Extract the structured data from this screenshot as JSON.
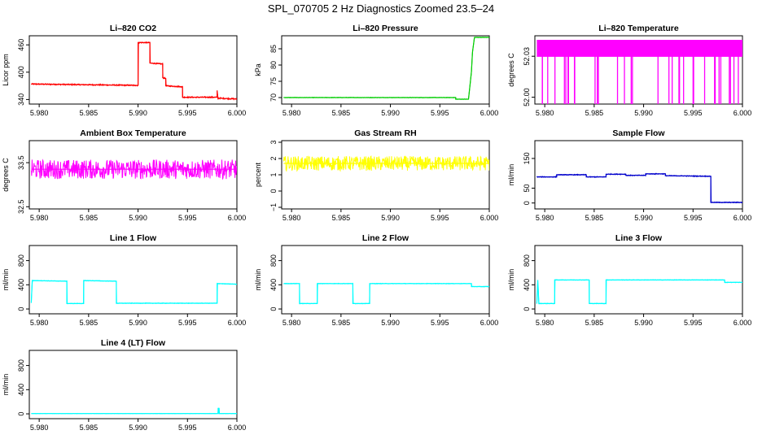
{
  "page": {
    "title": "SPL_070705  2 Hz Diagnostics Zoomed 23.5–24"
  },
  "chart_data": [
    {
      "type": "line",
      "title": "Li–820 CO2",
      "ylabel": "Licor ppm",
      "color": "#ff0000",
      "xlim": [
        5.979,
        6.0
      ],
      "ylim": [
        330,
        480
      ],
      "xticks": [
        5.98,
        5.985,
        5.99,
        5.995,
        6.0
      ],
      "xtick_labels": [
        "5.980",
        "5.985",
        "5.990",
        "5.995",
        "6.000"
      ],
      "yticks": [
        340,
        400,
        460
      ],
      "ytick_labels": [
        "340",
        "400",
        "460"
      ],
      "noise": 1.5,
      "series": [
        {
          "x": [
            5.9792,
            5.99,
            5.99,
            5.9912,
            5.9912,
            5.9925,
            5.9925,
            5.9928,
            5.9928,
            5.9945,
            5.9945,
            5.998,
            5.998,
            5.9981,
            5.9981,
            6.0
          ],
          "y": [
            374,
            371,
            465,
            465,
            420,
            418,
            388,
            386,
            370,
            368,
            345,
            345,
            360,
            340,
            343,
            341
          ]
        }
      ]
    },
    {
      "type": "line",
      "title": "Li–820 Pressure",
      "ylabel": "kPa",
      "color": "#00cc00",
      "xlim": [
        5.979,
        6.0
      ],
      "ylim": [
        68,
        89
      ],
      "xticks": [
        5.98,
        5.985,
        5.99,
        5.995,
        6.0
      ],
      "xtick_labels": [
        "5.980",
        "5.985",
        "5.990",
        "5.995",
        "6.000"
      ],
      "yticks": [
        70,
        75,
        80,
        85
      ],
      "ytick_labels": [
        "70",
        "75",
        "80",
        "85"
      ],
      "noise": 0.08,
      "series": [
        {
          "x": [
            5.9792,
            5.9966,
            5.9966,
            5.9979,
            5.9982,
            5.9983,
            5.9985,
            6.0
          ],
          "y": [
            70.0,
            70.0,
            69.5,
            69.5,
            78.0,
            84.0,
            88.5,
            88.5
          ]
        }
      ]
    },
    {
      "type": "line",
      "title": "Li–820 Temperature",
      "ylabel": "degrees C",
      "color": "#ff00ff",
      "xlim": [
        5.979,
        6.0
      ],
      "ylim": [
        51.995,
        52.045
      ],
      "xticks": [
        5.98,
        5.985,
        5.99,
        5.995,
        6.0
      ],
      "xtick_labels": [
        "5.980",
        "5.985",
        "5.990",
        "5.995",
        "6.000"
      ],
      "yticks": [
        52.0,
        52.03
      ],
      "ytick_labels": [
        "52.00",
        "52.03"
      ],
      "noise": 0,
      "series": [
        {
          "x": [
            5.9792,
            6.0
          ],
          "y": [
            52.03,
            52.03
          ]
        }
      ]
    },
    {
      "type": "line",
      "title": "Ambient Box Temperature",
      "ylabel": "degrees C",
      "color": "#ff00ff",
      "xlim": [
        5.979,
        6.0
      ],
      "ylim": [
        32.45,
        34.0
      ],
      "xticks": [
        5.98,
        5.985,
        5.99,
        5.995,
        6.0
      ],
      "xtick_labels": [
        "5.980",
        "5.985",
        "5.990",
        "5.995",
        "6.000"
      ],
      "yticks": [
        32.5,
        33.5
      ],
      "ytick_labels": [
        "32.5",
        "33.5"
      ],
      "noise": 0.22,
      "series": [
        {
          "x": [
            5.9792,
            6.0
          ],
          "y": [
            33.35,
            33.35
          ]
        }
      ]
    },
    {
      "type": "line",
      "title": "Gas Stream RH",
      "ylabel": "percent",
      "color": "#ffff00",
      "xlim": [
        5.979,
        6.0
      ],
      "ylim": [
        -1.1,
        3.1
      ],
      "xticks": [
        5.98,
        5.985,
        5.99,
        5.995,
        6.0
      ],
      "xtick_labels": [
        "5.980",
        "5.985",
        "5.990",
        "5.995",
        "6.000"
      ],
      "yticks": [
        -1,
        0,
        1,
        2,
        3
      ],
      "ytick_labels": [
        "−1",
        "0",
        "1",
        "2",
        "3"
      ],
      "noise": 0.45,
      "series": [
        {
          "x": [
            5.9792,
            6.0
          ],
          "y": [
            1.7,
            1.7
          ]
        }
      ]
    },
    {
      "type": "line",
      "title": "Sample Flow",
      "ylabel": "ml/min",
      "color": "#0000cc",
      "xlim": [
        5.979,
        6.0
      ],
      "ylim": [
        -20,
        210
      ],
      "xticks": [
        5.98,
        5.985,
        5.99,
        5.995,
        6.0
      ],
      "xtick_labels": [
        "5.980",
        "5.985",
        "5.990",
        "5.995",
        "6.000"
      ],
      "yticks": [
        0,
        50,
        150
      ],
      "ytick_labels": [
        "0",
        "50",
        "150"
      ],
      "noise": 1.5,
      "series": [
        {
          "x": [
            5.9792,
            5.9812,
            5.9812,
            5.9842,
            5.9842,
            5.9862,
            5.9862,
            5.9882,
            5.9882,
            5.9902,
            5.9902,
            5.9922,
            5.9922,
            5.9968,
            5.9968,
            6.0
          ],
          "y": [
            88,
            88,
            95,
            95,
            88,
            88,
            97,
            97,
            93,
            93,
            98,
            98,
            92,
            90,
            2,
            2
          ]
        }
      ]
    },
    {
      "type": "line",
      "title": "Line 1 Flow",
      "ylabel": "ml/min",
      "color": "#00ffff",
      "xlim": [
        5.979,
        6.0
      ],
      "ylim": [
        -80,
        1050
      ],
      "xticks": [
        5.98,
        5.985,
        5.99,
        5.995,
        6.0
      ],
      "xtick_labels": [
        "5.980",
        "5.985",
        "5.990",
        "5.995",
        "6.000"
      ],
      "yticks": [
        0,
        400,
        800
      ],
      "ytick_labels": [
        "0",
        "400",
        "800"
      ],
      "noise": 5,
      "series": [
        {
          "x": [
            5.9792,
            5.9793,
            5.9828,
            5.9828,
            5.9845,
            5.9845,
            5.9878,
            5.9878,
            5.998,
            5.998,
            6.0
          ],
          "y": [
            100,
            470,
            460,
            90,
            90,
            470,
            460,
            95,
            95,
            420,
            410
          ]
        }
      ]
    },
    {
      "type": "line",
      "title": "Line 2 Flow",
      "ylabel": "ml/min",
      "color": "#00ffff",
      "xlim": [
        5.979,
        6.0
      ],
      "ylim": [
        -80,
        1050
      ],
      "xticks": [
        5.98,
        5.985,
        5.99,
        5.995,
        6.0
      ],
      "xtick_labels": [
        "5.980",
        "5.985",
        "5.990",
        "5.995",
        "6.000"
      ],
      "yticks": [
        0,
        400,
        800
      ],
      "ytick_labels": [
        "0",
        "400",
        "800"
      ],
      "noise": 5,
      "series": [
        {
          "x": [
            5.9792,
            5.9808,
            5.9808,
            5.9826,
            5.9826,
            5.9862,
            5.9862,
            5.9879,
            5.9879,
            5.9982,
            5.9982,
            6.0
          ],
          "y": [
            420,
            420,
            90,
            90,
            420,
            420,
            90,
            90,
            420,
            420,
            370,
            370
          ]
        }
      ]
    },
    {
      "type": "line",
      "title": "Line 3 Flow",
      "ylabel": "ml/min",
      "color": "#00ffff",
      "xlim": [
        5.979,
        6.0
      ],
      "ylim": [
        -80,
        1050
      ],
      "xticks": [
        5.98,
        5.985,
        5.99,
        5.995,
        6.0
      ],
      "xtick_labels": [
        "5.980",
        "5.985",
        "5.990",
        "5.995",
        "6.000"
      ],
      "yticks": [
        0,
        400,
        800
      ],
      "ytick_labels": [
        "0",
        "400",
        "800"
      ],
      "noise": 5,
      "series": [
        {
          "x": [
            5.9792,
            5.9793,
            5.9794,
            5.981,
            5.981,
            5.9845,
            5.9845,
            5.9862,
            5.9862,
            5.9982,
            5.9982,
            6.0
          ],
          "y": [
            90,
            480,
            90,
            90,
            480,
            480,
            90,
            90,
            480,
            480,
            440,
            440
          ]
        }
      ]
    },
    {
      "type": "line",
      "title": "Line 4 (LT) Flow",
      "ylabel": "ml/min",
      "color": "#00ffff",
      "xlim": [
        5.979,
        6.0
      ],
      "ylim": [
        -80,
        1050
      ],
      "xticks": [
        5.98,
        5.985,
        5.99,
        5.995,
        6.0
      ],
      "xtick_labels": [
        "5.980",
        "5.985",
        "5.990",
        "5.995",
        "6.000"
      ],
      "yticks": [
        0,
        400,
        800
      ],
      "ytick_labels": [
        "0",
        "400",
        "800"
      ],
      "noise": 3,
      "series": [
        {
          "x": [
            5.9792,
            5.9981,
            5.9981,
            5.9982,
            5.9982,
            6.0
          ],
          "y": [
            5,
            5,
            90,
            90,
            5,
            5
          ]
        }
      ]
    }
  ]
}
